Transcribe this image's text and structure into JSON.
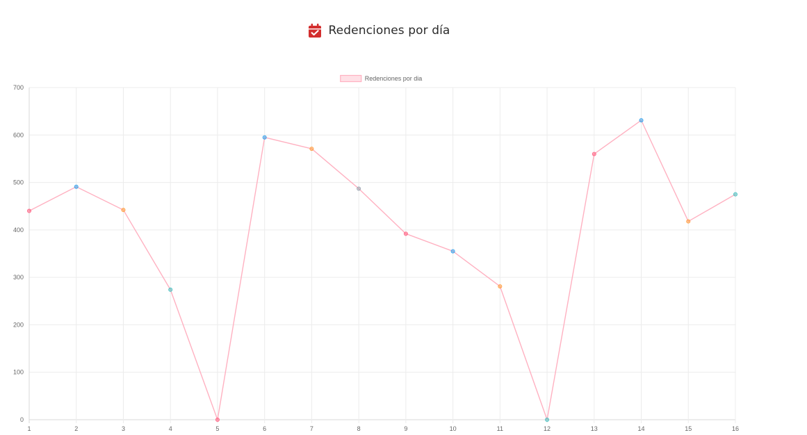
{
  "header": {
    "title": "Redenciones por día",
    "icon": "calendar-check-icon",
    "icon_color": "#d32f2f"
  },
  "chart_data": {
    "type": "line",
    "x": [
      "1",
      "2",
      "3",
      "4",
      "5",
      "6",
      "7",
      "8",
      "9",
      "10",
      "11",
      "12",
      "13",
      "14",
      "15",
      "16"
    ],
    "series": [
      {
        "name": "Redenciones por dia",
        "values": [
          440,
          491,
          442,
          274,
          0,
          595,
          571,
          487,
          392,
          355,
          281,
          0,
          560,
          631,
          418,
          475
        ],
        "line_color": "#ffb1c1",
        "legend_fill": "#ffe0e6",
        "point_colors": [
          "#ff6384",
          "#36a2eb",
          "#ff9f40",
          "#4bc0c0",
          "#ff6384",
          "#36a2eb",
          "#ff9f40",
          "#9aa5b1",
          "#ff6384",
          "#36a2eb",
          "#ff9f40",
          "#4bc0c0",
          "#ff6384",
          "#36a2eb",
          "#ff9f40",
          "#4bc0c0"
        ]
      }
    ],
    "ylim": [
      0,
      700
    ],
    "yticks": [
      "0",
      "100",
      "200",
      "300",
      "400",
      "500",
      "600",
      "700"
    ],
    "grid": true,
    "legend_position": "top-center",
    "xlabel": "",
    "ylabel": ""
  }
}
